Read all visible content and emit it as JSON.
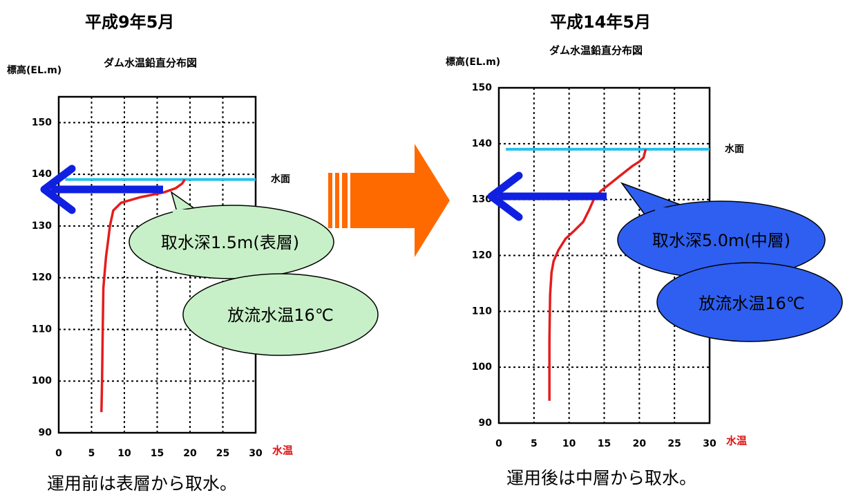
{
  "left": {
    "heading": "平成9年5月",
    "chart_title": "ダム水温鉛直分布図",
    "ylabel": "標高(EL.m)",
    "xlabel": "水温",
    "water_label": "水面",
    "bubble_depth": "取水深1.5m(表層)",
    "bubble_temp": "放流水温16℃",
    "caption": "運用前は表層から取水。",
    "x_ticks": [
      "0",
      "5",
      "10",
      "15",
      "20",
      "25",
      "30"
    ],
    "y_ticks": [
      "90",
      "100",
      "110",
      "120",
      "130",
      "140",
      "150"
    ]
  },
  "right": {
    "heading": "平成14年5月",
    "chart_title": "ダム水温鉛直分布図",
    "ylabel": "標高(EL.m)",
    "xlabel": "水温",
    "water_label": "水面",
    "bubble_depth": "取水深5.0m(中層)",
    "bubble_temp": "放流水温16℃",
    "caption": "運用後は中層から取水。",
    "x_ticks": [
      "0",
      "5",
      "10",
      "15",
      "20",
      "25",
      "30"
    ],
    "y_ticks": [
      "90",
      "100",
      "110",
      "120",
      "130",
      "140",
      "150"
    ]
  },
  "colors": {
    "profile": "#e51c1c",
    "water_surface": "#22c0ee",
    "intake_arrow": "#1020e0",
    "bubble_left": "#c8f0c8",
    "bubble_right": "#2e5ff0",
    "transition_arrow": "#ff6a00"
  },
  "chart_data": [
    {
      "type": "line",
      "title": "ダム水温鉛直分布図",
      "xlabel": "水温",
      "ylabel": "標高(EL.m)",
      "xlim": [
        0,
        30
      ],
      "ylim": [
        90,
        155
      ],
      "grid": true,
      "series": [
        {
          "x": [
            6.5,
            6.6,
            6.7,
            6.8,
            7.0,
            7.2,
            7.5,
            7.8,
            8.3,
            9.5,
            12.5,
            16.0,
            17.8,
            18.8,
            19.2
          ],
          "y": [
            94,
            100,
            110,
            118,
            121,
            124,
            127,
            130,
            133,
            134.5,
            135.6,
            136.5,
            137.3,
            138.2,
            139
          ]
        }
      ],
      "water_surface": 139,
      "intake_elevation": 137.5,
      "annotations": [
        "水面",
        "取水深1.5m(表層)",
        "放流水温16℃"
      ]
    },
    {
      "type": "line",
      "title": "ダム水温鉛直分布図",
      "xlabel": "水温",
      "ylabel": "標高(EL.m)",
      "xlim": [
        0,
        30
      ],
      "ylim": [
        90,
        150
      ],
      "grid": true,
      "series": [
        {
          "x": [
            7.2,
            7.2,
            7.3,
            7.5,
            7.8,
            8.5,
            9.5,
            10.8,
            12.0,
            12.8,
            13.5,
            14.5,
            16.0,
            17.0,
            18.0,
            19.0,
            20.0,
            20.6,
            20.9
          ],
          "y": [
            94,
            105,
            113,
            117,
            119,
            121,
            123,
            124.5,
            126,
            128,
            130,
            131.5,
            133,
            134,
            135,
            136,
            136.8,
            137.5,
            139
          ]
        }
      ],
      "water_surface": 139,
      "intake_elevation": 134,
      "annotations": [
        "水面",
        "取水深5.0m(中層)",
        "放流水温16℃"
      ]
    }
  ]
}
